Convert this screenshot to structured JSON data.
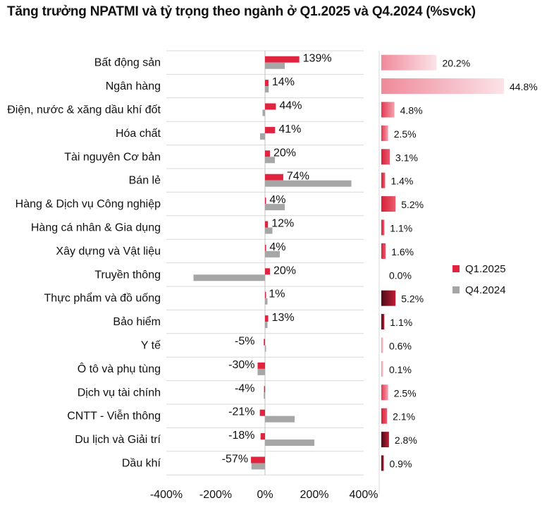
{
  "title": "Tăng trưởng NPATMI và tỷ trọng theo ngành ở Q1.2025 và Q4.2024 (%svck)",
  "colors": {
    "q1": "#e0233e",
    "q4": "#a6a6a6",
    "share_dark": "#5a0f1f",
    "share_light": "#f6c4cd",
    "grid": "#d9d9d9"
  },
  "legend": [
    {
      "name": "Q1.2025",
      "color": "#e0233e"
    },
    {
      "name": "Q4.2024",
      "color": "#a6a6a6"
    }
  ],
  "chart_data": [
    {
      "type": "bar",
      "orientation": "horizontal",
      "title": "Tăng trưởng NPATMI và tỷ trọng theo ngành ở Q1.2025 và Q4.2024 (%svck)",
      "xlabel": "",
      "ylabel": "",
      "xlim": [
        -400,
        400
      ],
      "xticks": [
        "-400%",
        "-200%",
        "0%",
        "200%",
        "400%"
      ],
      "xtick_values": [
        -400,
        -200,
        0,
        200,
        400
      ],
      "grid": false,
      "legend_position": "right",
      "categories": [
        "Bất động sản",
        "Ngân hàng",
        "Điện, nước & xăng dầu khí đốt",
        "Hóa chất",
        "Tài nguyên Cơ bản",
        "Bán lẻ",
        "Hàng & Dịch vụ Công nghiệp",
        "Hàng cá nhân & Gia dụng",
        "Xây dựng và Vật liệu",
        "Truyền thông",
        "Thực phẩm và đồ uống",
        "Bảo hiểm",
        "Y tế",
        "Ô tô và phụ tùng",
        "Dịch vụ tài chính",
        "CNTT - Viễn thông",
        "Du lịch và Giải trí",
        "Dầu khí"
      ],
      "series": [
        {
          "name": "Q1.2025",
          "values": [
            139,
            14,
            44,
            41,
            20,
            74,
            4,
            12,
            4,
            20,
            1,
            13,
            -5,
            -30,
            -4,
            -21,
            -18,
            -57
          ],
          "labels": [
            "139%",
            "14%",
            "44%",
            "41%",
            "20%",
            "74%",
            "4%",
            "12%",
            "4%",
            "20%",
            "1%",
            "13%",
            "-5%",
            "-30%",
            "-4%",
            "-21%",
            "-18%",
            "-57%"
          ]
        },
        {
          "name": "Q4.2024",
          "values": [
            80,
            15,
            -10,
            -20,
            40,
            350,
            80,
            30,
            60,
            -290,
            10,
            10,
            0,
            -30,
            -5,
            120,
            200,
            -55
          ]
        }
      ]
    },
    {
      "type": "bar",
      "orientation": "horizontal",
      "title": "",
      "categories": [
        "Bất động sản",
        "Ngân hàng",
        "Điện, nước & xăng dầu khí đốt",
        "Hóa chất",
        "Tài nguyên Cơ bản",
        "Bán lẻ",
        "Hàng & Dịch vụ Công nghiệp",
        "Hàng cá nhân & Gia dụng",
        "Xây dựng và Vật liệu",
        "Truyền thông",
        "Thực phẩm và đồ uống",
        "Bảo hiểm",
        "Y tế",
        "Ô tô và phụ tùng",
        "Dịch vụ tài chính",
        "CNTT - Viễn thông",
        "Du lịch và Giải trí",
        "Dầu khí"
      ],
      "values": [
        20.2,
        44.8,
        4.8,
        2.5,
        3.1,
        1.4,
        5.2,
        1.1,
        1.6,
        0.0,
        5.2,
        1.1,
        0.6,
        0.1,
        2.5,
        2.1,
        2.8,
        0.9
      ],
      "labels": [
        "20.2%",
        "44.8%",
        "4.8%",
        "2.5%",
        "3.1%",
        "1.4%",
        "5.2%",
        "1.1%",
        "1.6%",
        "0.0%",
        "5.2%",
        "1.1%",
        "0.6%",
        "0.1%",
        "2.5%",
        "2.1%",
        "2.8%",
        "0.9%"
      ],
      "shade": [
        "light",
        "light",
        "mid",
        "mid",
        "red",
        "red",
        "red",
        "red",
        "red",
        "red",
        "dark",
        "dark",
        "light",
        "light",
        "mid",
        "red",
        "dark",
        "dark"
      ]
    }
  ]
}
